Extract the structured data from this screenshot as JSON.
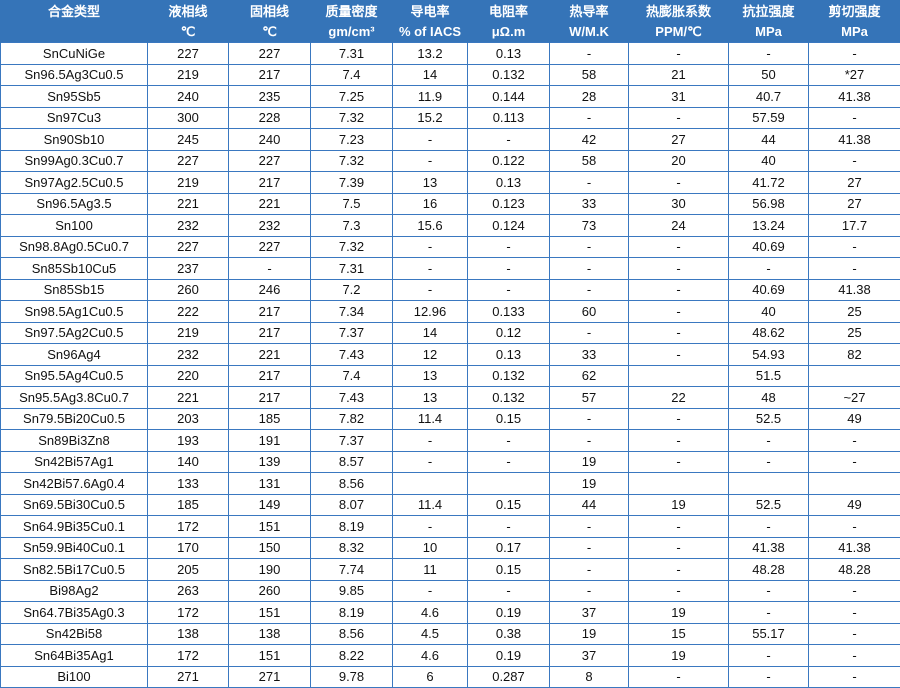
{
  "headers": [
    {
      "name": "合金类型",
      "unit": ""
    },
    {
      "name": "液相线",
      "unit": "℃"
    },
    {
      "name": "固相线",
      "unit": "℃"
    },
    {
      "name": "质量密度",
      "unit": "gm/cm³"
    },
    {
      "name": "导电率",
      "unit": "% of IACS"
    },
    {
      "name": "电阻率",
      "unit": "μΩ.m"
    },
    {
      "name": "热导率",
      "unit": "W/M.K"
    },
    {
      "name": "热膨胀系数",
      "unit": "PPM/℃"
    },
    {
      "name": "抗拉强度",
      "unit": "MPa"
    },
    {
      "name": "剪切强度",
      "unit": "MPa"
    }
  ],
  "rows": [
    [
      "SnCuNiGe",
      "227",
      "227",
      "7.31",
      "13.2",
      "0.13",
      "-",
      "-",
      "-",
      "-"
    ],
    [
      "Sn96.5Ag3Cu0.5",
      "219",
      "217",
      "7.4",
      "14",
      "0.132",
      "58",
      "21",
      "50",
      "*27"
    ],
    [
      "Sn95Sb5",
      "240",
      "235",
      "7.25",
      "11.9",
      "0.144",
      "28",
      "31",
      "40.7",
      "41.38"
    ],
    [
      "Sn97Cu3",
      "300",
      "228",
      "7.32",
      "15.2",
      "0.113",
      "-",
      "-",
      "57.59",
      "-"
    ],
    [
      "Sn90Sb10",
      "245",
      "240",
      "7.23",
      "-",
      "-",
      "42",
      "27",
      "44",
      "41.38"
    ],
    [
      "Sn99Ag0.3Cu0.7",
      "227",
      "227",
      "7.32",
      "-",
      "0.122",
      "58",
      "20",
      "40",
      "-"
    ],
    [
      "Sn97Ag2.5Cu0.5",
      "219",
      "217",
      "7.39",
      "13",
      "0.13",
      "-",
      "-",
      "41.72",
      "27"
    ],
    [
      "Sn96.5Ag3.5",
      "221",
      "221",
      "7.5",
      "16",
      "0.123",
      "33",
      "30",
      "56.98",
      "27"
    ],
    [
      "Sn100",
      "232",
      "232",
      "7.3",
      "15.6",
      "0.124",
      "73",
      "24",
      "13.24",
      "17.7"
    ],
    [
      "Sn98.8Ag0.5Cu0.7",
      "227",
      "227",
      "7.32",
      "-",
      "-",
      "-",
      "-",
      "40.69",
      "-"
    ],
    [
      "Sn85Sb10Cu5",
      "237",
      "-",
      "7.31",
      "-",
      "-",
      "-",
      "-",
      "-",
      "-"
    ],
    [
      "Sn85Sb15",
      "260",
      "246",
      "7.2",
      "-",
      "-",
      "-",
      "-",
      "40.69",
      "41.38"
    ],
    [
      "Sn98.5Ag1Cu0.5",
      "222",
      "217",
      "7.34",
      "12.96",
      "0.133",
      "60",
      "-",
      "40",
      "25"
    ],
    [
      "Sn97.5Ag2Cu0.5",
      "219",
      "217",
      "7.37",
      "14",
      "0.12",
      "-",
      "-",
      "48.62",
      "25"
    ],
    [
      "Sn96Ag4",
      "232",
      "221",
      "7.43",
      "12",
      "0.13",
      "33",
      "-",
      "54.93",
      "82"
    ],
    [
      "Sn95.5Ag4Cu0.5",
      "220",
      "217",
      "7.4",
      "13",
      "0.132",
      "62",
      "",
      "51.5",
      ""
    ],
    [
      "Sn95.5Ag3.8Cu0.7",
      "221",
      "217",
      "7.43",
      "13",
      "0.132",
      "57",
      "22",
      "48",
      "~27"
    ],
    [
      "Sn79.5Bi20Cu0.5",
      "203",
      "185",
      "7.82",
      "11.4",
      "0.15",
      "-",
      "-",
      "52.5",
      "49"
    ],
    [
      "Sn89Bi3Zn8",
      "193",
      "191",
      "7.37",
      "-",
      "-",
      "-",
      "-",
      "-",
      "-"
    ],
    [
      "Sn42Bi57Ag1",
      "140",
      "139",
      "8.57",
      "-",
      "-",
      "19",
      "-",
      "-",
      "-"
    ],
    [
      "Sn42Bi57.6Ag0.4",
      "133",
      "131",
      "8.56",
      "",
      "",
      "19",
      "",
      "",
      ""
    ],
    [
      "Sn69.5Bi30Cu0.5",
      "185",
      "149",
      "8.07",
      "11.4",
      "0.15",
      "44",
      "19",
      "52.5",
      "49"
    ],
    [
      "Sn64.9Bi35Cu0.1",
      "172",
      "151",
      "8.19",
      "-",
      "-",
      "-",
      "-",
      "-",
      "-"
    ],
    [
      "Sn59.9Bi40Cu0.1",
      "170",
      "150",
      "8.32",
      "10",
      "0.17",
      "-",
      "-",
      "41.38",
      "41.38"
    ],
    [
      "Sn82.5Bi17Cu0.5",
      "205",
      "190",
      "7.74",
      "11",
      "0.15",
      "-",
      "-",
      "48.28",
      "48.28"
    ],
    [
      "Bi98Ag2",
      "263",
      "260",
      "9.85",
      "-",
      "-",
      "-",
      "-",
      "-",
      "-"
    ],
    [
      "Sn64.7Bi35Ag0.3",
      "172",
      "151",
      "8.19",
      "4.6",
      "0.19",
      "37",
      "19",
      "-",
      "-"
    ],
    [
      "Sn42Bi58",
      "138",
      "138",
      "8.56",
      "4.5",
      "0.38",
      "19",
      "15",
      "55.17",
      "-"
    ],
    [
      "Sn64Bi35Ag1",
      "172",
      "151",
      "8.22",
      "4.6",
      "0.19",
      "37",
      "19",
      "-",
      "-"
    ],
    [
      "Bi100",
      "271",
      "271",
      "9.78",
      "6",
      "0.287",
      "8",
      "-",
      "-",
      "-"
    ]
  ],
  "colors": {
    "header_bg": "#3574b8",
    "border": "#3a78c0"
  }
}
